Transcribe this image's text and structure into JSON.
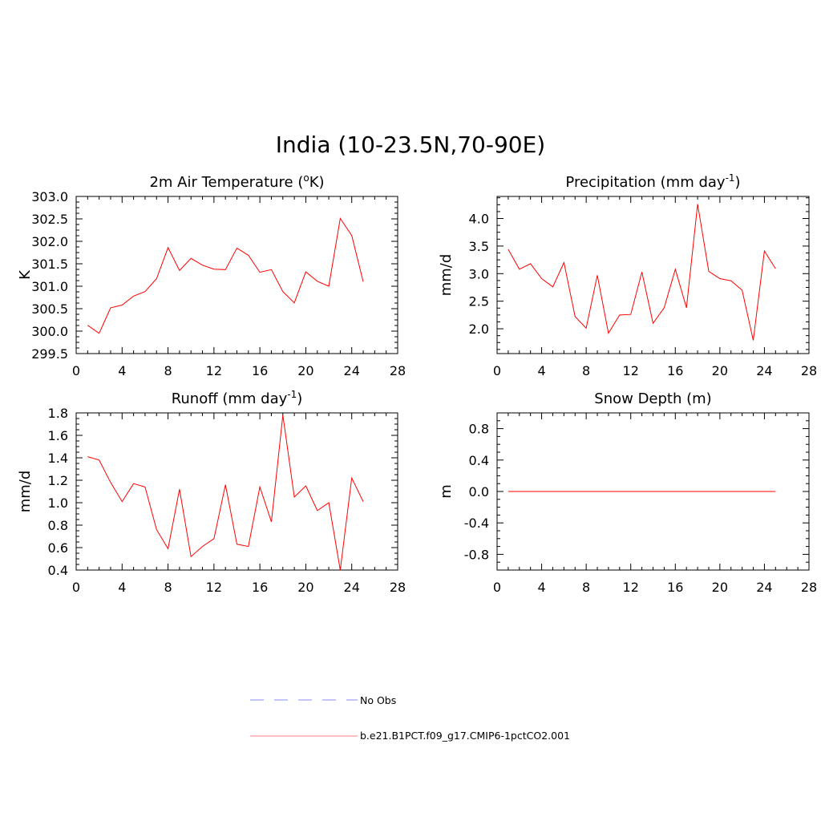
{
  "main_title": "India (10-23.5N,70-90E)",
  "colors": {
    "model": "#ff0000",
    "obs": "#a0a0ff",
    "axis": "#000000"
  },
  "chart_data": [
    {
      "type": "line",
      "title": "2m Air Temperature (",
      "title_sup": "o",
      "title_suffix": "K)",
      "ylabel": "K",
      "xlim": [
        0,
        28
      ],
      "ylim": [
        299.5,
        303.0
      ],
      "xticks": [
        0,
        4,
        8,
        12,
        16,
        20,
        24,
        28
      ],
      "yticks": [
        299.5,
        300.0,
        300.5,
        301.0,
        301.5,
        302.0,
        302.5,
        303.0
      ],
      "ytick_labels": [
        "299.5",
        "300.0",
        "300.5",
        "301.0",
        "301.5",
        "302.0",
        "302.5",
        "303.0"
      ],
      "x": [
        1,
        2,
        3,
        4,
        5,
        6,
        7,
        8,
        9,
        10,
        11,
        12,
        13,
        14,
        15,
        16,
        17,
        18,
        19,
        20,
        21,
        22,
        23,
        24,
        25
      ],
      "series": [
        {
          "name": "b.e21.B1PCT.f09_g17.CMIP6-1pctCO2.001",
          "values": [
            300.13,
            299.95,
            300.52,
            300.58,
            300.78,
            300.88,
            301.17,
            301.86,
            301.35,
            301.62,
            301.47,
            301.38,
            301.37,
            301.85,
            301.69,
            301.31,
            301.37,
            300.88,
            300.63,
            301.32,
            301.11,
            301.0,
            302.51,
            302.13,
            301.1
          ]
        }
      ]
    },
    {
      "type": "line",
      "title": "Precipitation (mm day",
      "title_sup": "-1",
      "title_suffix": ")",
      "ylabel": "mm/d",
      "xlim": [
        0,
        28
      ],
      "ylim": [
        1.55,
        4.4
      ],
      "xticks": [
        0,
        4,
        8,
        12,
        16,
        20,
        24,
        28
      ],
      "yticks": [
        2.0,
        2.5,
        3.0,
        3.5,
        4.0
      ],
      "ytick_labels": [
        "2.0",
        "2.5",
        "3.0",
        "3.5",
        "4.0"
      ],
      "x": [
        1,
        2,
        3,
        4,
        5,
        6,
        7,
        8,
        9,
        10,
        11,
        12,
        13,
        14,
        15,
        16,
        17,
        18,
        19,
        20,
        21,
        22,
        23,
        24,
        25
      ],
      "series": [
        {
          "name": "b.e21.B1PCT.f09_g17.CMIP6-1pctCO2.001",
          "values": [
            3.44,
            3.08,
            3.18,
            2.91,
            2.76,
            3.2,
            2.22,
            2.01,
            2.97,
            1.92,
            2.25,
            2.26,
            3.03,
            2.1,
            2.38,
            3.08,
            2.38,
            4.26,
            3.04,
            2.91,
            2.87,
            2.7,
            1.79,
            3.41,
            3.09
          ]
        }
      ]
    },
    {
      "type": "line",
      "title": "Runoff (mm day",
      "title_sup": "-1",
      "title_suffix": ")",
      "ylabel": "mm/d",
      "xlim": [
        0,
        28
      ],
      "ylim": [
        0.4,
        1.8
      ],
      "xticks": [
        0,
        4,
        8,
        12,
        16,
        20,
        24,
        28
      ],
      "yticks": [
        0.4,
        0.6,
        0.8,
        1.0,
        1.2,
        1.4,
        1.6,
        1.8
      ],
      "ytick_labels": [
        "0.4",
        "0.6",
        "0.8",
        "1.0",
        "1.2",
        "1.4",
        "1.6",
        "1.8"
      ],
      "x": [
        1,
        2,
        3,
        4,
        5,
        6,
        7,
        8,
        9,
        10,
        11,
        12,
        13,
        14,
        15,
        16,
        17,
        18,
        19,
        20,
        21,
        22,
        23,
        24,
        25
      ],
      "series": [
        {
          "name": "b.e21.B1PCT.f09_g17.CMIP6-1pctCO2.001",
          "values": [
            1.41,
            1.38,
            1.18,
            1.01,
            1.17,
            1.14,
            0.76,
            0.59,
            1.12,
            0.52,
            0.61,
            0.68,
            1.16,
            0.63,
            0.61,
            1.14,
            0.83,
            1.78,
            1.05,
            1.15,
            0.93,
            1.0,
            0.4,
            1.22,
            1.01
          ]
        }
      ]
    },
    {
      "type": "line",
      "title": "Snow Depth (m)",
      "title_sup": "",
      "title_suffix": "",
      "ylabel": "m",
      "xlim": [
        0,
        28
      ],
      "ylim": [
        -1.0,
        1.0
      ],
      "xticks": [
        0,
        4,
        8,
        12,
        16,
        20,
        24,
        28
      ],
      "yticks": [
        -0.8,
        -0.4,
        0.0,
        0.4,
        0.8
      ],
      "ytick_labels": [
        "-0.8",
        "-0.4",
        "0.0",
        "0.4",
        "0.8"
      ],
      "x": [
        1,
        2,
        3,
        4,
        5,
        6,
        7,
        8,
        9,
        10,
        11,
        12,
        13,
        14,
        15,
        16,
        17,
        18,
        19,
        20,
        21,
        22,
        23,
        24,
        25
      ],
      "series": [
        {
          "name": "b.e21.B1PCT.f09_g17.CMIP6-1pctCO2.001",
          "values": [
            0,
            0,
            0,
            0,
            0,
            0,
            0,
            0,
            0,
            0,
            0,
            0,
            0,
            0,
            0,
            0,
            0,
            0,
            0,
            0,
            0,
            0,
            0,
            0,
            0
          ]
        }
      ]
    }
  ],
  "legend": {
    "placement": "bottom-center",
    "items": [
      {
        "label": "No Obs",
        "style": "dashed",
        "color": "#a0a0ff"
      },
      {
        "label": "b.e21.B1PCT.f09_g17.CMIP6-1pctCO2.001",
        "style": "solid",
        "color": "#ff9999"
      }
    ]
  }
}
